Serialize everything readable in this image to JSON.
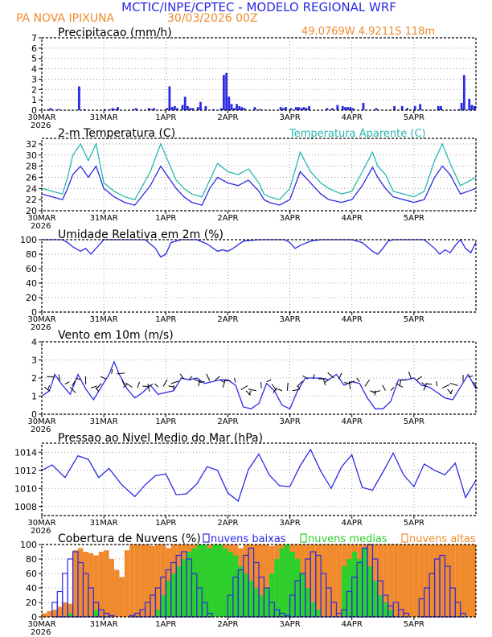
{
  "header": {
    "title": "MCTIC/INPE/CPTEC - MODELO REGIONAL WRF",
    "location": "PA NOVA IPIXUNA",
    "run": "30/03/2026 00Z",
    "coords": "49.0769W 4.9211S 118m"
  },
  "colors": {
    "title": "#2b2be0",
    "orange": "#f08a2c",
    "blue": "#2a2ae6",
    "cyan": "#28b8b0",
    "green": "#2ccf2c",
    "black": "#000000"
  },
  "xaxis": {
    "ticks": [
      "30MAR",
      "31MAR",
      "1APR",
      "2APR",
      "3APR",
      "4APR",
      "5APR"
    ],
    "year": "2026",
    "range_hours": [
      0,
      168
    ]
  },
  "chart_data": [
    {
      "id": "precip",
      "type": "bar",
      "title": "Precipitacao (mm/h)",
      "ylim": [
        0,
        7
      ],
      "yticks": [
        0,
        1,
        2,
        3,
        4,
        5,
        6,
        7
      ],
      "series": [
        {
          "name": "Precipitacao",
          "color": "#2a2ae6",
          "x": [
            2,
            3,
            6,
            14,
            16,
            24,
            26,
            27,
            28,
            29,
            35,
            36,
            41,
            42,
            43,
            48,
            49,
            50,
            51,
            52,
            54,
            55,
            56,
            57,
            58,
            60,
            61,
            63,
            66,
            69,
            70,
            71,
            72,
            73,
            74,
            75,
            76,
            77,
            78,
            82,
            84,
            92,
            93,
            94,
            96,
            98,
            99,
            100,
            101,
            102,
            103,
            110,
            112,
            114,
            116,
            117,
            118,
            119,
            120,
            124,
            129,
            136,
            139,
            141,
            144,
            146,
            153,
            154,
            161,
            162,
            163,
            165,
            166,
            167
          ],
          "values": [
            0.1,
            0.2,
            0.1,
            2.3,
            0.1,
            0.1,
            0.1,
            0.2,
            0.1,
            0.3,
            0.1,
            0.2,
            0.2,
            0.1,
            0.2,
            0.2,
            2.3,
            0.3,
            0.4,
            0.2,
            0.5,
            1.3,
            0.4,
            0.2,
            0.2,
            0.3,
            0.8,
            0.4,
            0.1,
            0.2,
            3.4,
            3.6,
            1.3,
            0.6,
            0.2,
            0.6,
            0.4,
            0.3,
            0.2,
            0.3,
            0.1,
            0.3,
            0.2,
            0.3,
            0.2,
            0.3,
            0.3,
            0.2,
            0.3,
            0.2,
            0.4,
            0.2,
            0.2,
            0.5,
            0.4,
            0.3,
            0.3,
            0.3,
            0.2,
            0.7,
            0.2,
            0.4,
            0.4,
            0.2,
            0.4,
            0.6,
            0.4,
            0.4,
            0.1,
            0.7,
            3.4,
            1.1,
            0.5,
            0.4
          ]
        }
      ]
    },
    {
      "id": "temp",
      "type": "line",
      "title": "2-m Temperatura (C)",
      "legend": "Temperatura Aparente (C)",
      "ylim": [
        20,
        33
      ],
      "yticks": [
        20,
        22,
        24,
        26,
        28,
        30,
        32
      ],
      "series": [
        {
          "name": "2-m Temperatura",
          "color": "#2a2ae6",
          "x": [
            0,
            4,
            8,
            10,
            12,
            15,
            18,
            21,
            24,
            28,
            32,
            36,
            42,
            46,
            52,
            55,
            58,
            62,
            65,
            68,
            72,
            76,
            80,
            84,
            86,
            88,
            92,
            96,
            100,
            104,
            108,
            111,
            116,
            120,
            124,
            128,
            130,
            133,
            136,
            140,
            144,
            148,
            152,
            155,
            158,
            162,
            168
          ],
          "values": [
            23,
            22.5,
            22,
            24,
            26.5,
            28,
            26,
            28,
            24,
            22.5,
            21.5,
            21,
            24.5,
            28,
            24,
            22.5,
            21.5,
            21,
            24,
            26,
            25,
            24.5,
            25.5,
            23.5,
            22,
            21.5,
            21,
            22,
            27,
            25,
            23,
            22,
            21.5,
            22,
            24.5,
            27.8,
            26,
            24,
            22.5,
            22,
            21.5,
            22,
            26,
            28,
            26.5,
            23,
            24
          ]
        },
        {
          "name": "Temperatura Aparente",
          "color": "#28b8b0",
          "x": [
            0,
            4,
            8,
            10,
            12,
            15,
            18,
            21,
            24,
            28,
            32,
            36,
            42,
            46,
            52,
            55,
            58,
            62,
            65,
            68,
            72,
            76,
            80,
            84,
            86,
            88,
            92,
            96,
            100,
            104,
            108,
            111,
            116,
            120,
            124,
            128,
            130,
            133,
            136,
            140,
            144,
            148,
            152,
            155,
            158,
            162,
            168
          ],
          "values": [
            24,
            23.5,
            23,
            26,
            30,
            32,
            29,
            32,
            25,
            23.5,
            22.5,
            22,
            27,
            32,
            25.5,
            24,
            23,
            22.5,
            25.5,
            28.5,
            27,
            26.5,
            27.5,
            25,
            23,
            22.5,
            22,
            24,
            30.5,
            27,
            25,
            24,
            23,
            23.5,
            27,
            30.5,
            28,
            26.5,
            23.5,
            23,
            22.5,
            23.5,
            29,
            32,
            28.5,
            24.5,
            26
          ]
        }
      ]
    },
    {
      "id": "rh",
      "type": "line",
      "title": "Umidade Relativa em 2m (%)",
      "ylim": [
        0,
        100
      ],
      "yticks": [
        0,
        20,
        40,
        60,
        80,
        100
      ],
      "series": [
        {
          "name": "Umidade Relativa",
          "color": "#2a2ae6",
          "x": [
            0,
            4,
            8,
            10,
            12,
            15,
            17,
            19,
            21,
            23,
            24,
            30,
            36,
            40,
            44,
            46,
            48,
            50,
            54,
            60,
            64,
            68,
            70,
            72,
            74,
            78,
            84,
            90,
            94,
            96,
            98,
            100,
            104,
            108,
            112,
            116,
            120,
            124,
            128,
            130,
            132,
            134,
            136,
            140,
            144,
            148,
            152,
            154,
            156,
            158,
            160,
            162,
            164,
            166,
            168
          ],
          "values": [
            100,
            100,
            100,
            96,
            90,
            84,
            88,
            80,
            88,
            96,
            100,
            100,
            100,
            100,
            88,
            76,
            80,
            96,
            100,
            100,
            94,
            84,
            86,
            84,
            88,
            98,
            100,
            100,
            100,
            96,
            88,
            92,
            98,
            100,
            100,
            100,
            100,
            96,
            84,
            80,
            88,
            98,
            100,
            100,
            100,
            100,
            88,
            80,
            86,
            82,
            92,
            100,
            88,
            82,
            96
          ]
        }
      ]
    },
    {
      "id": "wind",
      "type": "line",
      "title": "Vento em 10m (m/s)",
      "ylim": [
        0,
        4
      ],
      "yticks": [
        0,
        1,
        2,
        3,
        4
      ],
      "series": [
        {
          "name": "Vento",
          "color": "#2a2ae6",
          "x": [
            0,
            3,
            5,
            8,
            11,
            14,
            17,
            20,
            23,
            26,
            28,
            30,
            33,
            36,
            39,
            42,
            45,
            48,
            51,
            54,
            57,
            60,
            63,
            66,
            69,
            72,
            75,
            78,
            81,
            84,
            87,
            90,
            93,
            96,
            99,
            102,
            105,
            108,
            111,
            114,
            117,
            120,
            123,
            126,
            129,
            132,
            135,
            138,
            141,
            144,
            147,
            150,
            153,
            156,
            159,
            162,
            165,
            168
          ],
          "values": [
            1,
            1.3,
            2.2,
            1.6,
            1.1,
            2.2,
            1.4,
            0.8,
            1.5,
            2.2,
            2.9,
            2.2,
            1.4,
            0.9,
            1.2,
            1.6,
            1.1,
            1.2,
            1.3,
            2.0,
            1.9,
            2.0,
            1.7,
            1.8,
            1.9,
            1.9,
            1.6,
            0.4,
            0.3,
            0.6,
            1.7,
            1.3,
            0.5,
            0.3,
            1.3,
            2.0,
            2.0,
            2.0,
            1.9,
            2.2,
            1.6,
            1.8,
            1.7,
            0.9,
            0.3,
            0.3,
            0.7,
            1.9,
            1.9,
            2.0,
            1.6,
            1.5,
            1.2,
            0.9,
            0.8,
            1.5,
            2.2,
            1.4
          ]
        }
      ]
    },
    {
      "id": "pressure",
      "type": "line",
      "title": "Pressao ao Nivel Medio do Mar (hPa)",
      "ylim": [
        1007,
        1015
      ],
      "yticks": [
        1008,
        1010,
        1012,
        1014
      ],
      "series": [
        {
          "name": "Pressao",
          "color": "#2a2ae6",
          "x": [
            0,
            4,
            9,
            14,
            18,
            22,
            26,
            31,
            36,
            40,
            44,
            48,
            52,
            56,
            60,
            64,
            68,
            72,
            76,
            80,
            84,
            88,
            92,
            96,
            100,
            104,
            108,
            112,
            116,
            120,
            124,
            128,
            132,
            136,
            140,
            144,
            148,
            152,
            156,
            160,
            164,
            168
          ],
          "values": [
            1012,
            1012.6,
            1011.2,
            1013.6,
            1013.2,
            1011.2,
            1012.2,
            1010.4,
            1009.1,
            1010.4,
            1011.4,
            1011.6,
            1009.3,
            1009.4,
            1010.5,
            1012.4,
            1012.0,
            1009.5,
            1008.6,
            1012.1,
            1013.8,
            1011.5,
            1010.3,
            1010.2,
            1012.5,
            1014.3,
            1011.9,
            1010.0,
            1012.4,
            1013.7,
            1010.1,
            1009.8,
            1011.8,
            1013.9,
            1011.5,
            1010.2,
            1012.7,
            1012.0,
            1011.5,
            1012.8,
            1009.0,
            1010.9
          ]
        }
      ]
    },
    {
      "id": "clouds",
      "type": "bar",
      "title": "Cobertura de Nuvens (%)",
      "legend": [
        "nuvens baixas",
        "nuvens medias",
        "nuvens altas"
      ],
      "ylim": [
        0,
        100
      ],
      "yticks": [
        0,
        20,
        40,
        60,
        80,
        100
      ],
      "x_start": 0,
      "x_step": 2,
      "series": [
        {
          "name": "nuvens altas",
          "color": "#f08a2c",
          "values": [
            5,
            8,
            10,
            14,
            20,
            18,
            92,
            95,
            90,
            88,
            85,
            90,
            92,
            80,
            65,
            55,
            92,
            100,
            100,
            100,
            100,
            98,
            100,
            100,
            95,
            100,
            100,
            100,
            100,
            100,
            100,
            100,
            100,
            100,
            100,
            100,
            100,
            100,
            95,
            100,
            100,
            100,
            100,
            100,
            98,
            100,
            100,
            100,
            100,
            100,
            100,
            100,
            100,
            100,
            100,
            100,
            100,
            100,
            100,
            100,
            100,
            100,
            100,
            100,
            100,
            100,
            100,
            100,
            100,
            100,
            100,
            100,
            100,
            100,
            100,
            100,
            100,
            100,
            100,
            100,
            100,
            100,
            100,
            100
          ]
        },
        {
          "name": "nuvens medias",
          "color": "#2ccf2c",
          "values": [
            0,
            0,
            0,
            0,
            0,
            5,
            0,
            0,
            0,
            0,
            10,
            0,
            0,
            0,
            0,
            0,
            0,
            0,
            0,
            0,
            0,
            0,
            10,
            30,
            50,
            60,
            70,
            80,
            90,
            95,
            100,
            100,
            95,
            100,
            100,
            95,
            90,
            85,
            70,
            60,
            50,
            40,
            30,
            40,
            60,
            80,
            95,
            100,
            90,
            80,
            60,
            40,
            20,
            10,
            0,
            0,
            0,
            0,
            70,
            80,
            90,
            80,
            95,
            70,
            50,
            30,
            20,
            10,
            0,
            0,
            0,
            0,
            0,
            0,
            0,
            0,
            0,
            0,
            0,
            0,
            0,
            0,
            0,
            0
          ]
        },
        {
          "name": "nuvens baixas",
          "color": "#2a2ae6",
          "values": [
            0,
            0,
            20,
            35,
            60,
            80,
            90,
            75,
            60,
            40,
            20,
            10,
            5,
            2,
            0,
            0,
            0,
            2,
            5,
            10,
            20,
            30,
            40,
            55,
            65,
            75,
            85,
            90,
            80,
            60,
            40,
            20,
            5,
            0,
            0,
            0,
            30,
            55,
            65,
            85,
            95,
            75,
            55,
            40,
            20,
            10,
            5,
            2,
            30,
            50,
            60,
            80,
            90,
            85,
            60,
            40,
            20,
            5,
            10,
            35,
            55,
            75,
            95,
            100,
            80,
            50,
            30,
            15,
            20,
            10,
            5,
            0,
            0,
            25,
            40,
            60,
            80,
            85,
            70,
            40,
            20,
            5,
            0,
            0
          ]
        }
      ]
    }
  ]
}
